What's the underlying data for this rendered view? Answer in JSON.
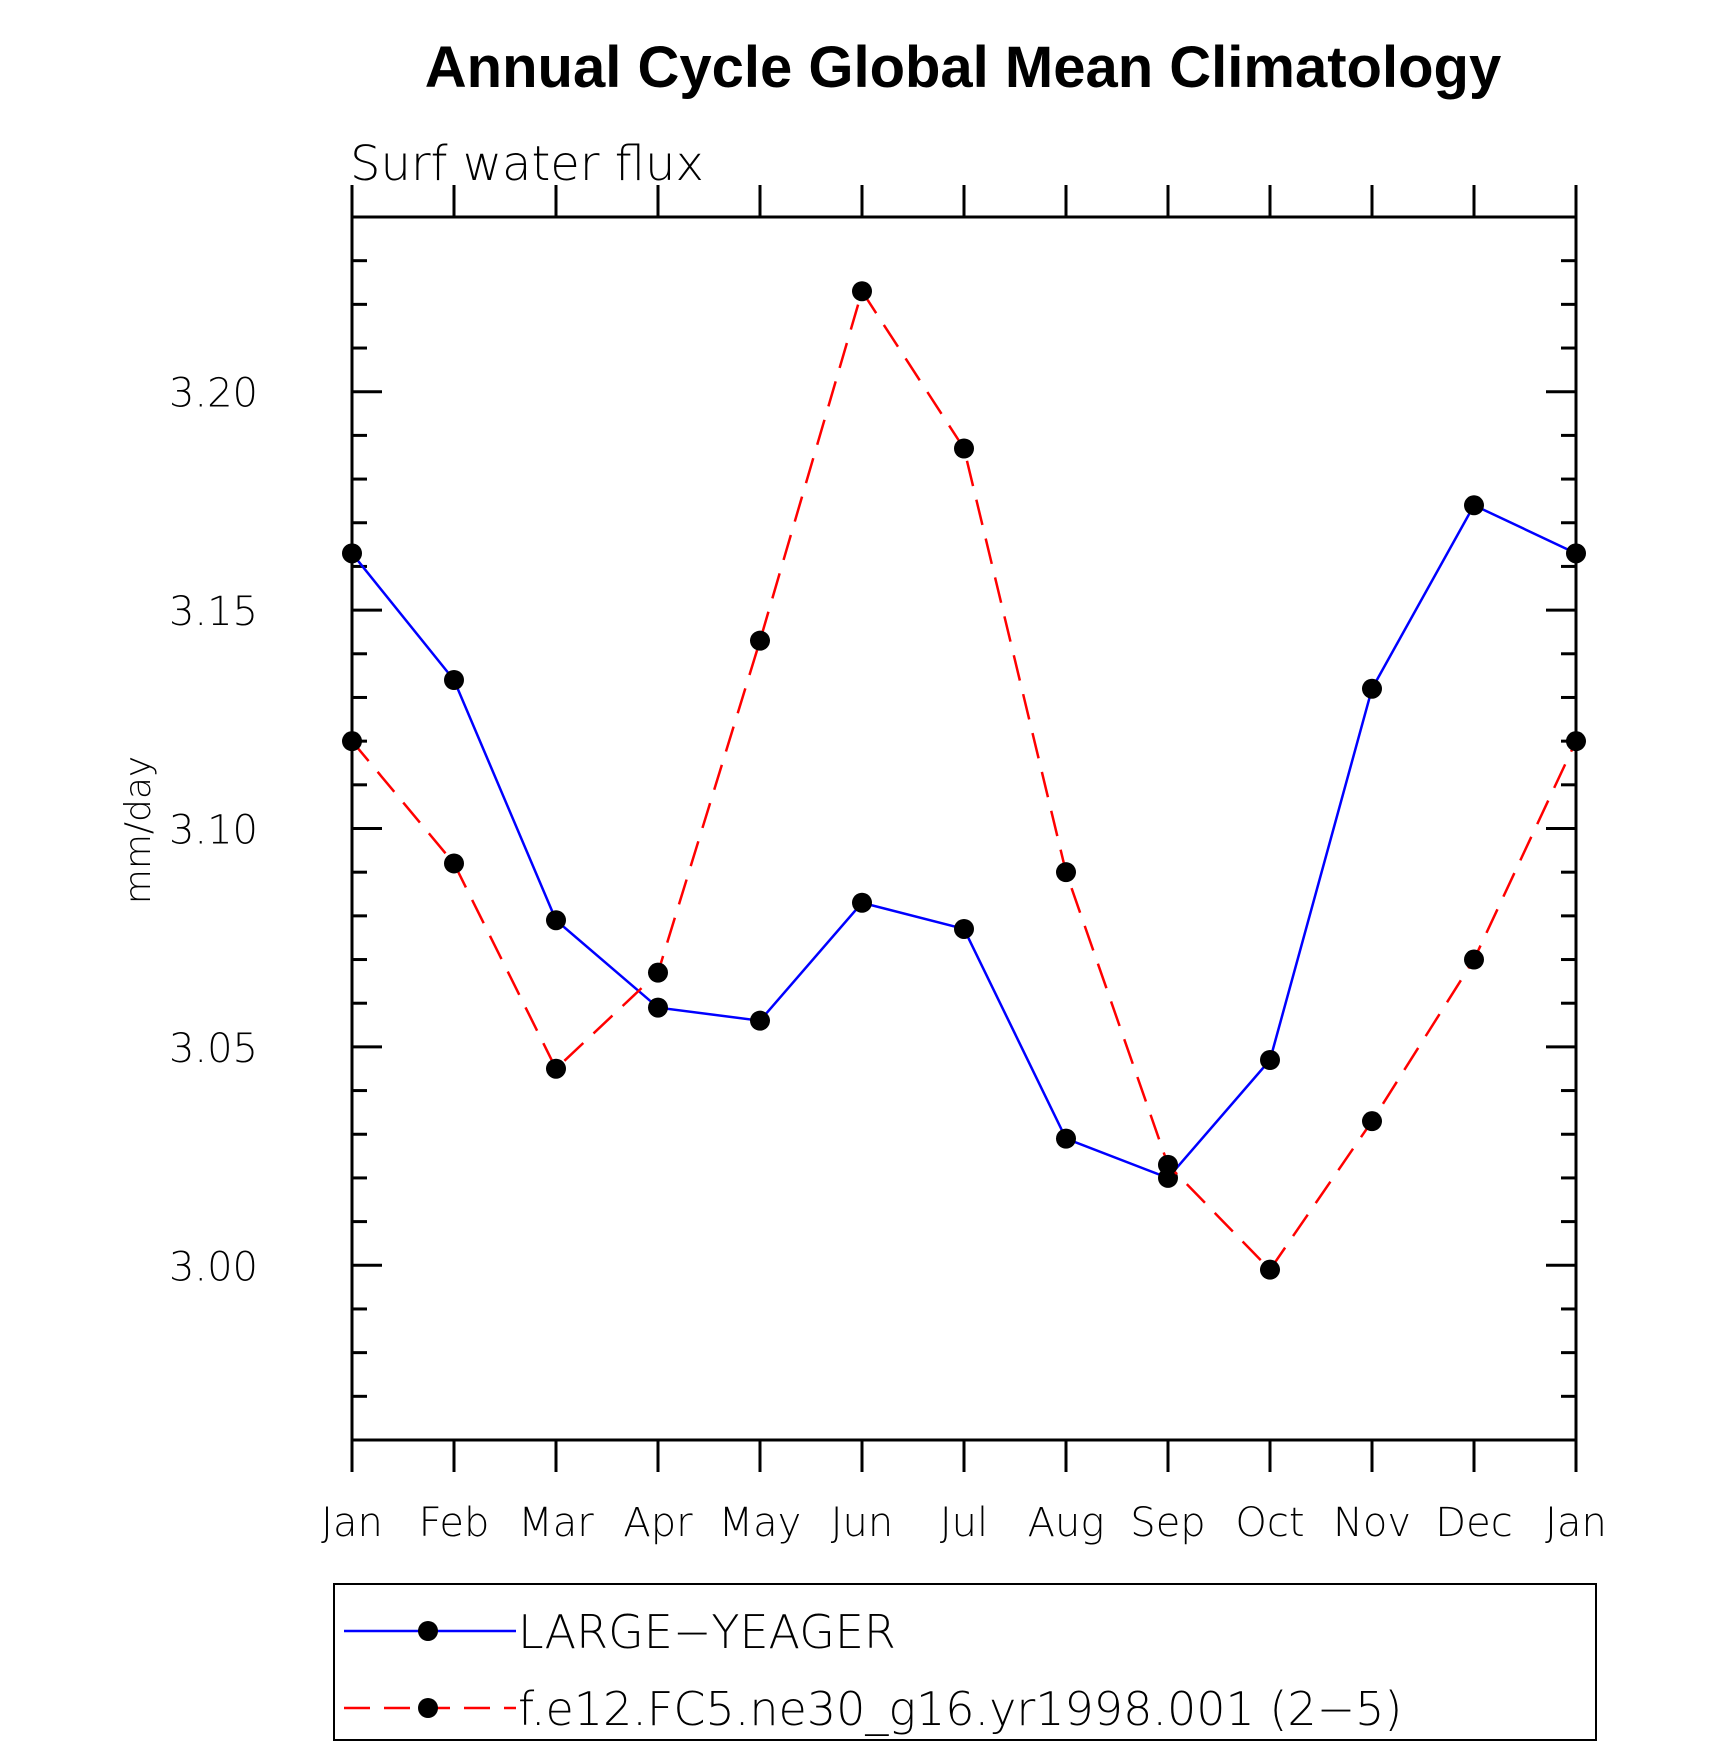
{
  "chart_data": {
    "type": "line",
    "title": "Annual Cycle Global Mean Climatology",
    "subtitle": "Surf water flux",
    "xlabel": "",
    "ylabel": "mm/day",
    "x_ticks": [
      "Jan",
      "Feb",
      "Mar",
      "Apr",
      "May",
      "Jun",
      "Jul",
      "Aug",
      "Sep",
      "Oct",
      "Nov",
      "Dec",
      "Jan"
    ],
    "y_ticks": [
      "3.00",
      "3.05",
      "3.10",
      "3.15",
      "3.20"
    ],
    "ylim": [
      2.96,
      3.24
    ],
    "grid": false,
    "legend_position": "bottom",
    "series": [
      {
        "name": "LARGE−YEAGER",
        "color": "#0000ff",
        "style": "solid",
        "values": [
          3.163,
          3.134,
          3.079,
          3.059,
          3.056,
          3.083,
          3.077,
          3.029,
          3.02,
          3.047,
          3.132,
          3.174,
          3.163
        ]
      },
      {
        "name": "f.e12.FC5.ne30_g16.yr1998.001 (2−5)",
        "color": "#ff0000",
        "style": "dashed",
        "values": [
          3.12,
          3.092,
          3.045,
          3.067,
          3.143,
          3.223,
          3.187,
          3.09,
          3.023,
          2.999,
          3.033,
          3.07,
          3.12
        ]
      }
    ]
  }
}
